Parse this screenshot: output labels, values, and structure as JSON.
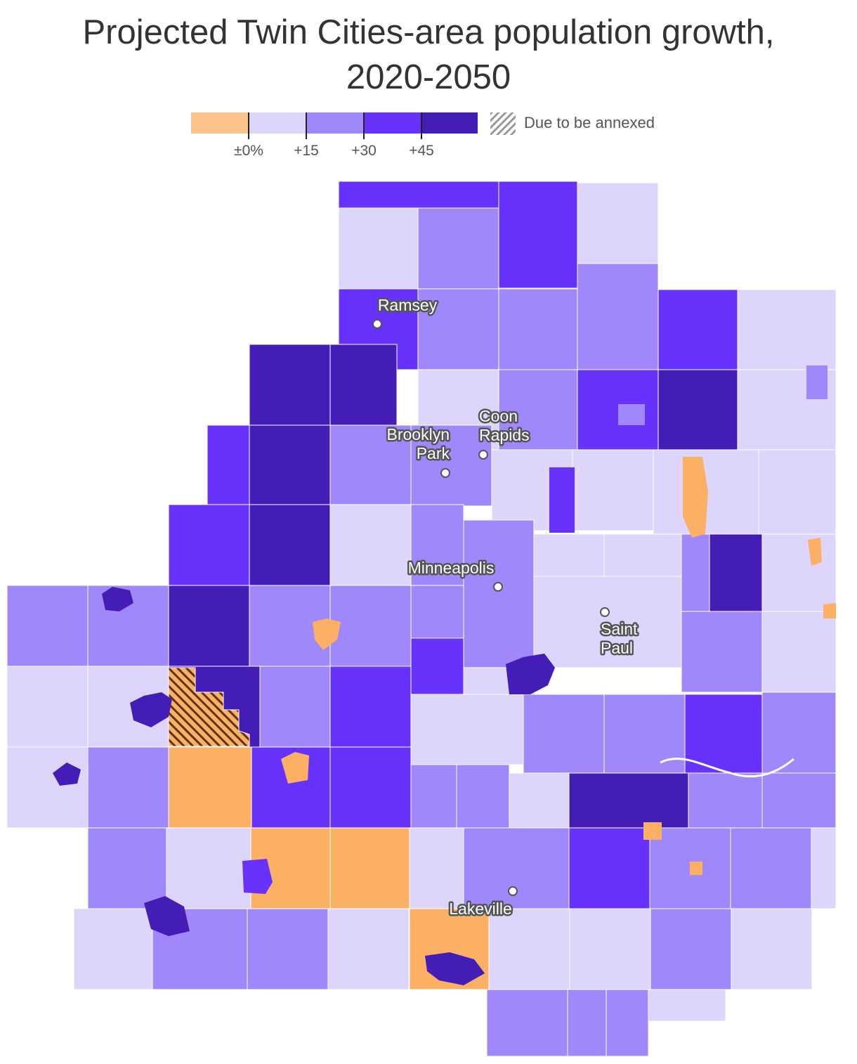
{
  "title_line1": "Projected Twin Cities-area population growth,",
  "title_line2": "2020-2050",
  "legend": {
    "colors": [
      "#fec389",
      "#ddd5fb",
      "#a087fc",
      "#6732fc",
      "#441cb6"
    ],
    "tick_labels": [
      "±0%",
      "+15",
      "+30",
      "+45"
    ],
    "annexed_label": "Due to be annexed"
  },
  "cities": [
    {
      "name_lines": [
        "Ramsey"
      ]
    },
    {
      "name_lines": [
        "Coon",
        "Rapids"
      ]
    },
    {
      "name_lines": [
        "Brooklyn",
        "Park"
      ]
    },
    {
      "name_lines": [
        "Minneapolis"
      ]
    },
    {
      "name_lines": [
        "Saint",
        "Paul"
      ]
    },
    {
      "name_lines": [
        "Lakeville"
      ]
    }
  ],
  "map_colors": {
    "decline": "#fcb063",
    "bucket_0_15": "#ddd5fb",
    "bucket_15_30": "#a087fc",
    "bucket_30_45": "#6732fc",
    "bucket_45_plus": "#441cb6",
    "border": "#ffffff"
  }
}
